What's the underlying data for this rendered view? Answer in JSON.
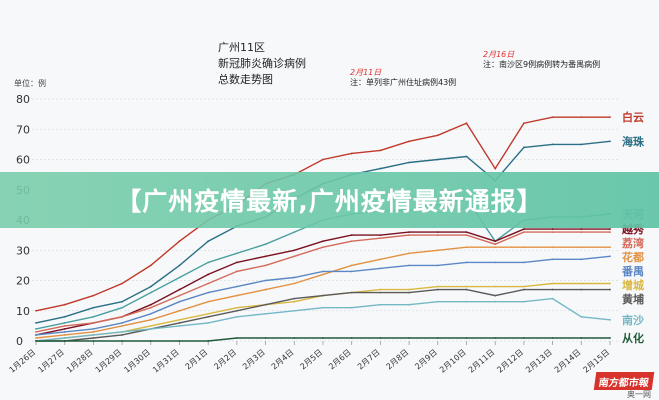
{
  "title_lines": [
    "广州11区",
    "新冠肺炎确诊病例",
    "总数走势图"
  ],
  "note_feb11": {
    "date": "2月11日",
    "text": "注：单列非广州住址病例43例"
  },
  "note_feb16": {
    "date": "2月16日",
    "text": "注：南沙区9例病例转为番禺病例"
  },
  "banner": "【广州疫情最新,广州疫情最新通报】",
  "watermark": "南方都市報",
  "watermark_sub": "奥一网",
  "chart_data": {
    "type": "line",
    "ylabel": "单位：例",
    "ylim": [
      0,
      80
    ],
    "yticks": [
      0,
      10,
      20,
      30,
      40,
      50,
      60,
      70,
      80
    ],
    "categories": [
      "1月26日",
      "1月27日",
      "1月28日",
      "1月29日",
      "1月30日",
      "1月31日",
      "2月1日",
      "2月2日",
      "2月3日",
      "2月4日",
      "2月5日",
      "2月6日",
      "2月7日",
      "2月8日",
      "2月9日",
      "2月10日",
      "2月11日",
      "2月12日",
      "2月13日",
      "2月14日",
      "2月15日"
    ],
    "series": [
      {
        "name": "白云",
        "color": "#c0392b",
        "values": [
          10,
          12,
          15,
          19,
          25,
          33,
          40,
          45,
          52,
          55,
          60,
          62,
          63,
          66,
          68,
          72,
          57,
          72,
          74,
          74,
          74
        ]
      },
      {
        "name": "海珠",
        "color": "#2b6f87",
        "values": [
          6,
          8,
          11,
          13,
          18,
          25,
          33,
          38,
          41,
          47,
          52,
          55,
          57,
          59,
          60,
          61,
          53,
          64,
          65,
          65,
          66
        ]
      },
      {
        "name": "天河",
        "color": "#4aa0a0",
        "values": [
          4,
          6,
          8,
          11,
          16,
          21,
          26,
          29,
          32,
          36,
          40,
          42,
          43,
          43,
          45,
          47,
          33,
          40,
          41,
          41,
          42
        ]
      },
      {
        "name": "越秀",
        "color": "#7a1020",
        "values": [
          2,
          4,
          6,
          8,
          12,
          17,
          22,
          26,
          28,
          30,
          33,
          35,
          35,
          36,
          36,
          36,
          33,
          37,
          37,
          37,
          37
        ]
      },
      {
        "name": "荔湾",
        "color": "#d46a5a",
        "values": [
          3,
          5,
          6,
          8,
          11,
          15,
          19,
          23,
          25,
          28,
          31,
          33,
          34,
          35,
          35,
          35,
          32,
          36,
          36,
          36,
          36
        ]
      },
      {
        "name": "花都",
        "color": "#e29140",
        "values": [
          1,
          2,
          3,
          5,
          7,
          10,
          13,
          15,
          17,
          19,
          22,
          25,
          27,
          29,
          30,
          31,
          31,
          31,
          31,
          31,
          31
        ]
      },
      {
        "name": "番禺",
        "color": "#5b88c5",
        "values": [
          2,
          3,
          4,
          6,
          9,
          13,
          16,
          18,
          20,
          21,
          23,
          23,
          24,
          25,
          25,
          26,
          26,
          26,
          27,
          27,
          28
        ]
      },
      {
        "name": "增城",
        "color": "#d9b840",
        "values": [
          0,
          1,
          2,
          3,
          5,
          7,
          9,
          11,
          12,
          13,
          15,
          16,
          17,
          17,
          18,
          18,
          18,
          18,
          19,
          19,
          19
        ]
      },
      {
        "name": "黄埔",
        "color": "#5a5a5a",
        "values": [
          0,
          0,
          1,
          2,
          4,
          6,
          8,
          10,
          12,
          14,
          15,
          16,
          16,
          16,
          17,
          17,
          15,
          17,
          17,
          17,
          17
        ]
      },
      {
        "name": "南沙",
        "color": "#74b8c6",
        "values": [
          0,
          1,
          2,
          3,
          4,
          5,
          6,
          8,
          9,
          10,
          11,
          11,
          12,
          12,
          13,
          13,
          13,
          13,
          14,
          8,
          7
        ]
      },
      {
        "name": "从化",
        "color": "#1f5a3a",
        "values": [
          0,
          0,
          0,
          0,
          0,
          0,
          0,
          1,
          1,
          1,
          1,
          1,
          1,
          1,
          1,
          1,
          1,
          1,
          1,
          1,
          1
        ]
      }
    ]
  }
}
